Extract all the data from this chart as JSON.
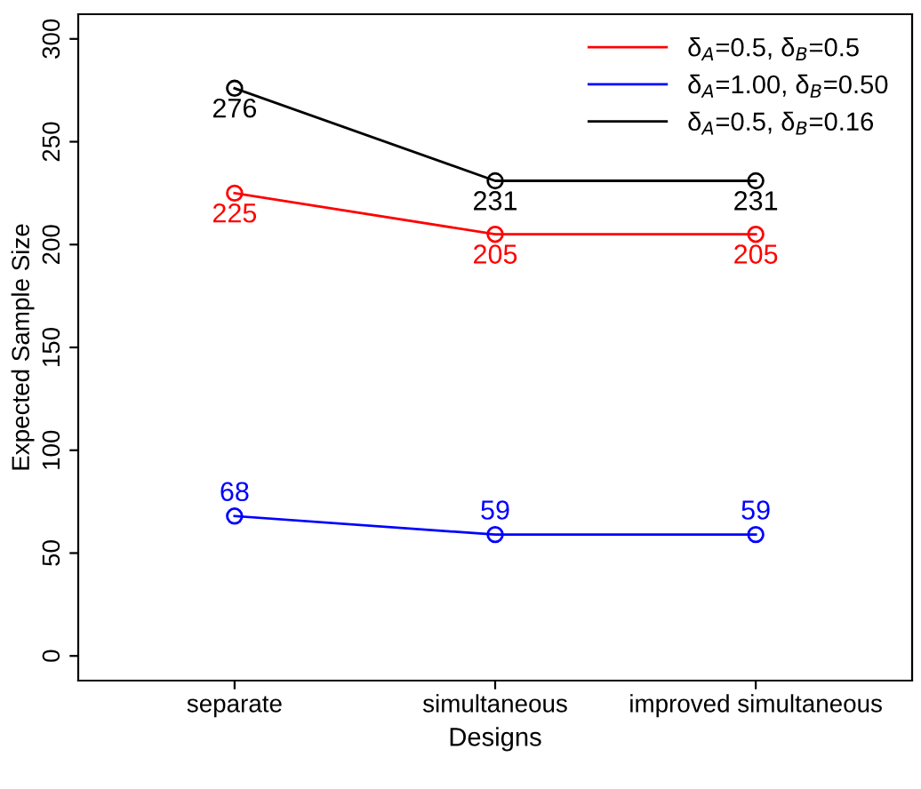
{
  "chart_data": {
    "type": "line",
    "xlabel": "Designs",
    "ylabel": "Expected Sample Size",
    "categories": [
      "separate",
      "simultaneous",
      "improved simultaneous"
    ],
    "series": [
      {
        "name": "δ$_{A}$=0.5, δ$_{B}$=0.5",
        "color": "#ff0000",
        "values": [
          225,
          205,
          205
        ]
      },
      {
        "name": "δ$_{A}$=1.00, δ$_{B}$=0.50",
        "color": "#0000ff",
        "values": [
          68,
          59,
          59
        ]
      },
      {
        "name": "δ$_{A}$=0.5, δ$_{B}$=0.16",
        "color": "#000000",
        "values": [
          276,
          231,
          231
        ]
      }
    ],
    "ylim": [
      -12,
      312
    ],
    "yticks": [
      0,
      50,
      100,
      150,
      200,
      250,
      300
    ],
    "data_labels": true,
    "marker": "circle",
    "line_style": "solid",
    "legend": "top right",
    "grid": false
  }
}
